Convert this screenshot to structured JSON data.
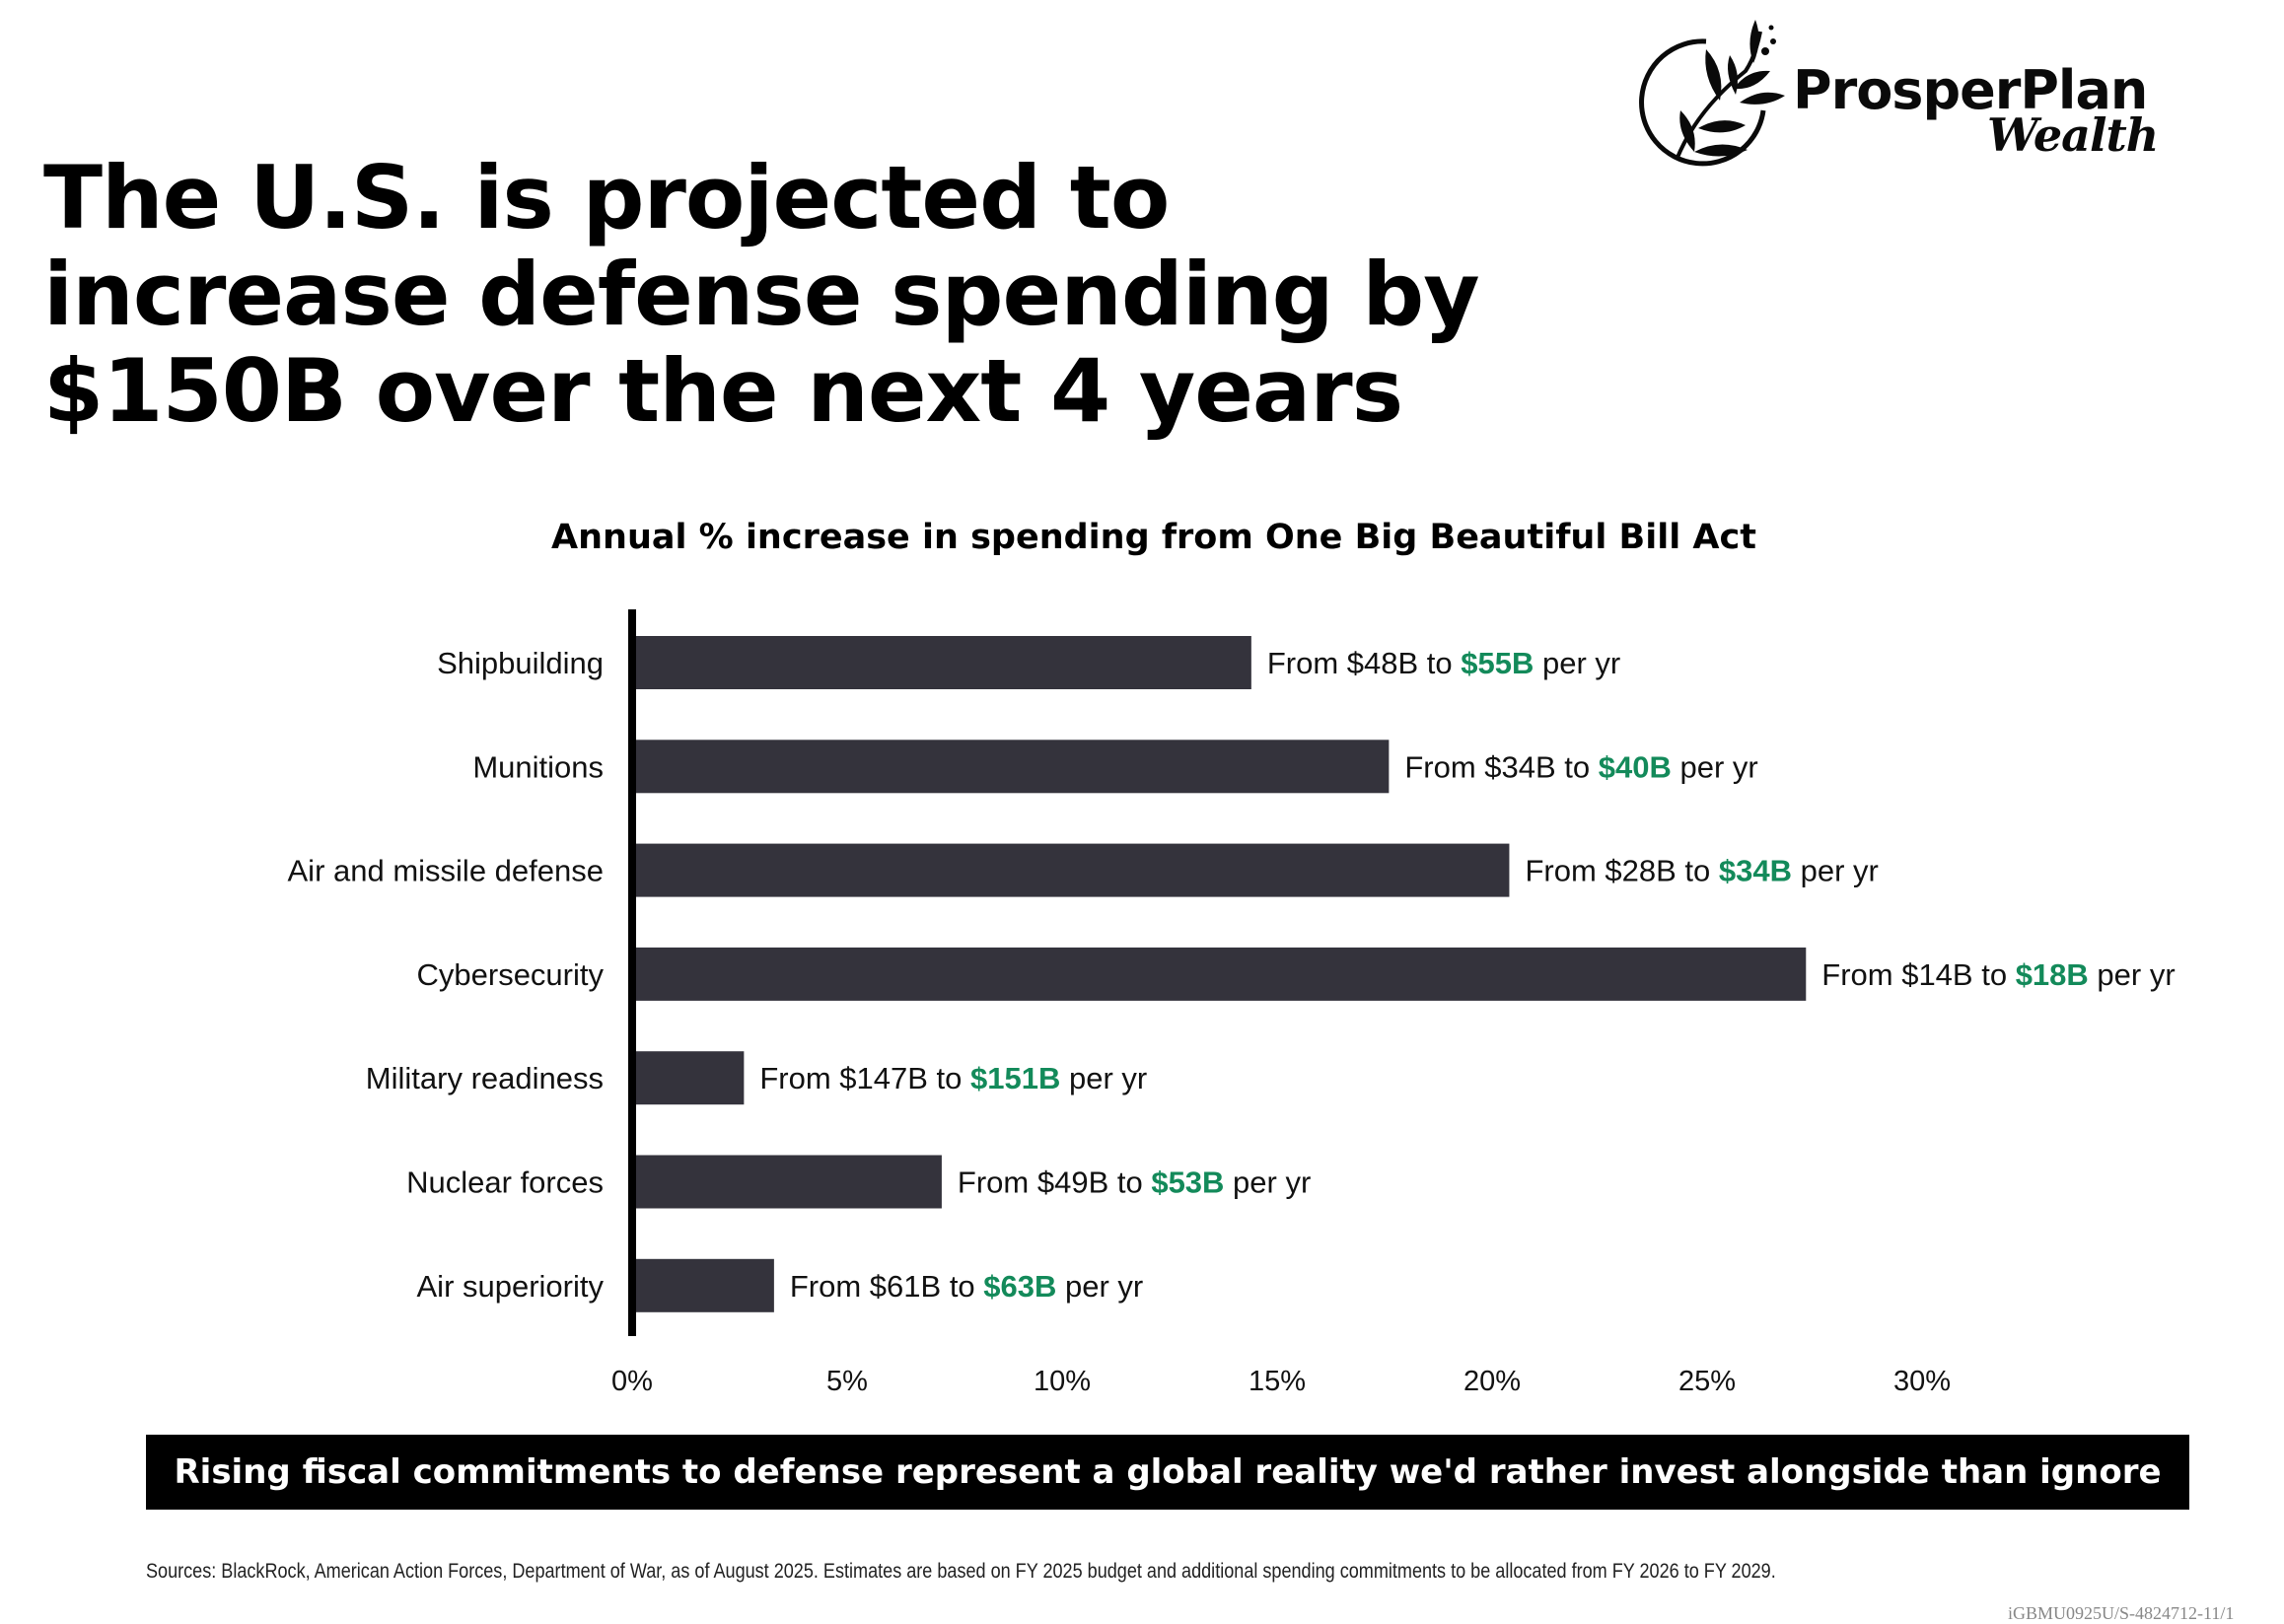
{
  "logo": {
    "icon": "olive-branch-circle-icon",
    "brand": "ProsperPlan",
    "sub": "Wealth"
  },
  "headline": {
    "lines": [
      "The U.S. is projected to",
      "increase defense spending by",
      "$150B over the next 4 years"
    ]
  },
  "colors": {
    "bar": "#34333c",
    "highlight": "#138a5a",
    "axis": "#000000",
    "banner_bg": "#000000",
    "banner_text": "#ffffff"
  },
  "chart_data": {
    "type": "bar",
    "orientation": "horizontal",
    "title": "Annual % increase in spending from One Big Beautiful Bill Act",
    "xlabel": "",
    "ylabel": "",
    "xlim": [
      0,
      30
    ],
    "x_ticks": [
      0,
      5,
      10,
      15,
      20,
      25,
      30
    ],
    "x_tick_labels": [
      "0%",
      "5%",
      "10%",
      "15%",
      "20%",
      "25%",
      "30%"
    ],
    "grid": false,
    "legend": "none",
    "categories": [
      "Shipbuilding",
      "Munitions",
      "Air and missile defense",
      "Cybersecurity",
      "Military readiness",
      "Nuclear forces",
      "Air superiority"
    ],
    "values": [
      14.4,
      17.6,
      20.4,
      27.3,
      2.6,
      7.2,
      3.3
    ],
    "annotations": [
      {
        "prefix": "From $48B to ",
        "highlight": "$55B",
        "suffix": " per yr"
      },
      {
        "prefix": "From $34B to ",
        "highlight": "$40B",
        "suffix": " per yr"
      },
      {
        "prefix": "From $28B to ",
        "highlight": "$34B",
        "suffix": " per yr"
      },
      {
        "prefix": "From $14B to ",
        "highlight": "$18B",
        "suffix": " per yr"
      },
      {
        "prefix": "From $147B to ",
        "highlight": "$151B",
        "suffix": " per yr"
      },
      {
        "prefix": "From $49B to ",
        "highlight": "$53B",
        "suffix": " per yr"
      },
      {
        "prefix": "From $61B to ",
        "highlight": "$63B",
        "suffix": " per yr"
      }
    ]
  },
  "banner": {
    "text": "Rising fiscal commitments to defense represent a global reality we'd rather invest alongside than ignore"
  },
  "footer": {
    "sources": "Sources: BlackRock, American Action Forces, Department of War, as of August 2025. Estimates are  based on FY 2025 budget and additional spending commitments to be allocated from FY 2026 to FY 2029.",
    "doc_code": "iGBMU0925U/S-4824712-11/1"
  }
}
